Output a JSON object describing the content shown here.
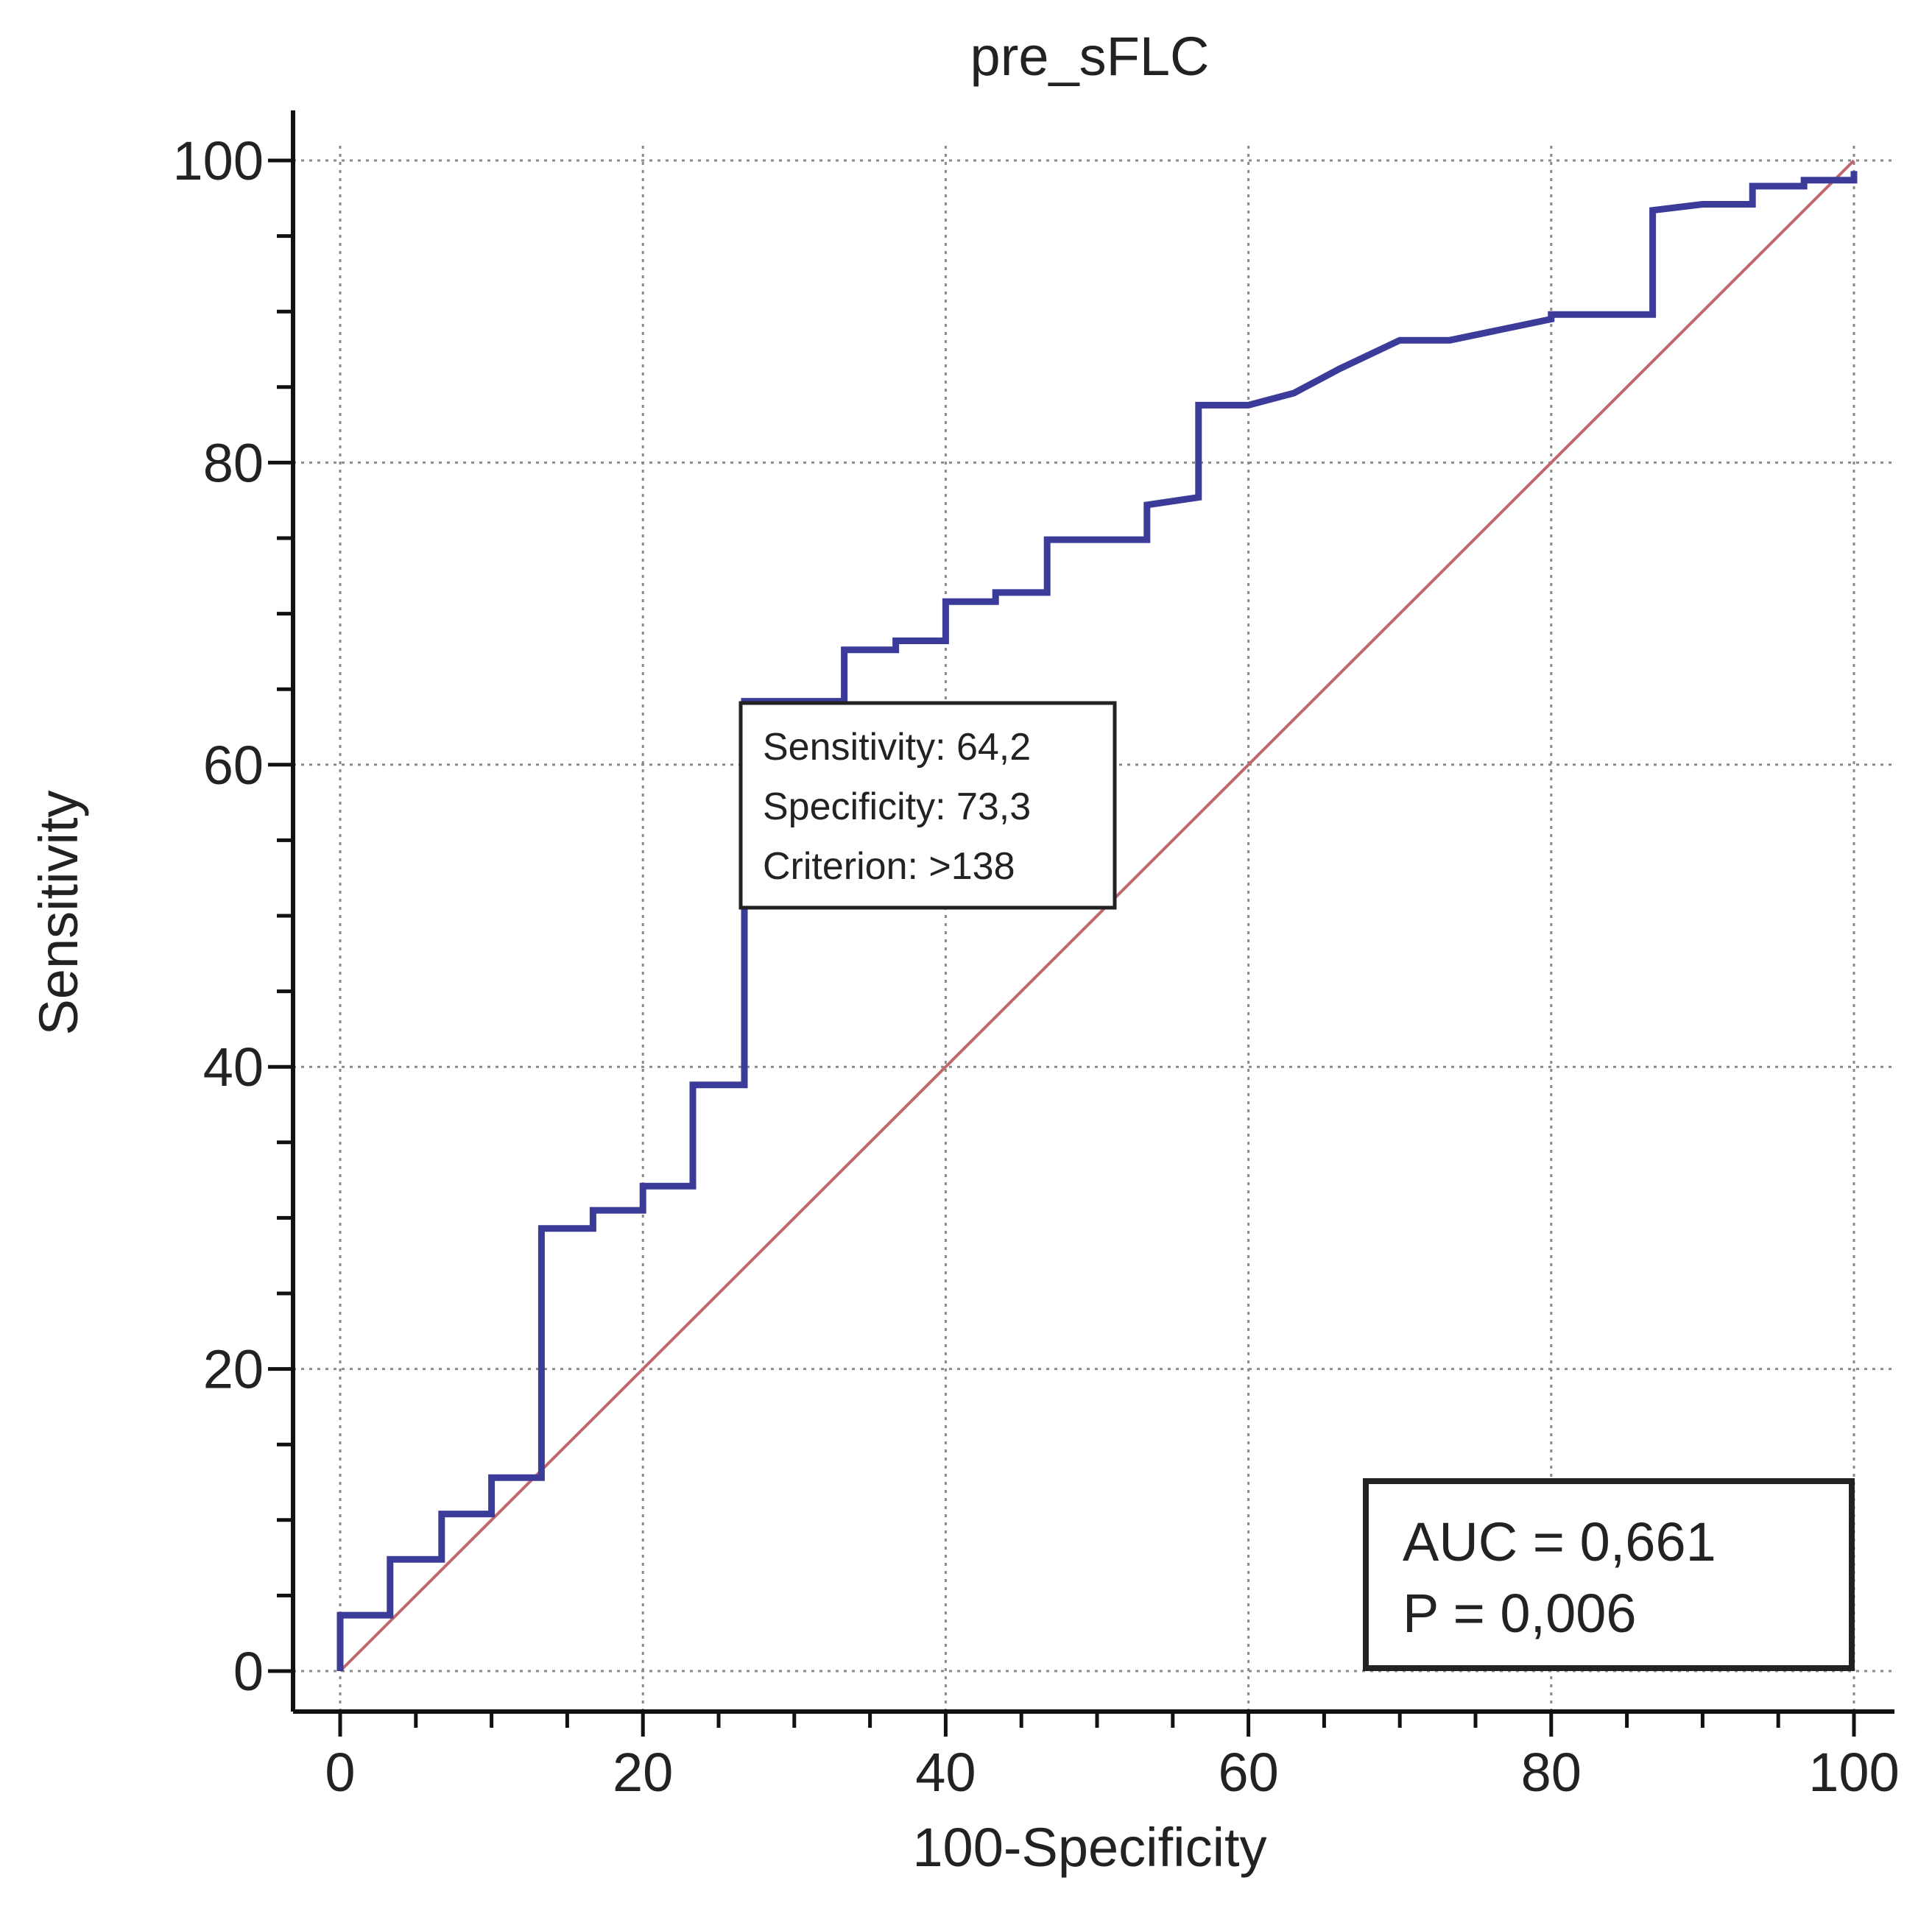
{
  "chart_data": {
    "type": "line",
    "title": "pre_sFLC",
    "xlabel": "100-Specificity",
    "ylabel": "Sensitivity",
    "xlim": [
      0,
      100
    ],
    "ylim": [
      0,
      100
    ],
    "x_ticks": [
      0,
      20,
      40,
      60,
      80,
      100
    ],
    "y_ticks": [
      0,
      20,
      40,
      60,
      80,
      100
    ],
    "x_tick_labels": [
      "0",
      "20",
      "40",
      "60",
      "80",
      "100"
    ],
    "y_tick_labels": [
      "0",
      "20",
      "40",
      "60",
      "80",
      "100"
    ],
    "grid": true,
    "series": [
      {
        "name": "ROC curve",
        "color": "#3b3b9a",
        "points": [
          [
            0,
            0
          ],
          [
            0,
            3.7
          ],
          [
            3.3,
            3.7
          ],
          [
            3.3,
            7.4
          ],
          [
            6.7,
            7.4
          ],
          [
            6.7,
            10.4
          ],
          [
            10,
            10.4
          ],
          [
            10,
            12.8
          ],
          [
            13.3,
            12.8
          ],
          [
            13.3,
            29.3
          ],
          [
            16.7,
            29.3
          ],
          [
            16.7,
            30.5
          ],
          [
            20,
            30.5
          ],
          [
            20,
            32.1
          ],
          [
            23.3,
            32.1
          ],
          [
            23.3,
            38.8
          ],
          [
            26.7,
            38.8
          ],
          [
            26.7,
            64.2
          ],
          [
            33.3,
            64.2
          ],
          [
            33.3,
            67.6
          ],
          [
            36.7,
            67.6
          ],
          [
            36.7,
            68.2
          ],
          [
            40,
            68.2
          ],
          [
            40,
            70.8
          ],
          [
            43.3,
            70.8
          ],
          [
            43.3,
            71.4
          ],
          [
            46.7,
            71.4
          ],
          [
            46.7,
            74.9
          ],
          [
            53.3,
            74.9
          ],
          [
            53.3,
            77.2
          ],
          [
            56.7,
            77.7
          ],
          [
            56.7,
            83.8
          ],
          [
            60,
            83.8
          ],
          [
            63,
            84.6
          ],
          [
            66,
            86.2
          ],
          [
            70,
            88.1
          ],
          [
            73.3,
            88.1
          ],
          [
            80,
            89.5
          ],
          [
            80,
            89.8
          ],
          [
            86.7,
            89.8
          ],
          [
            86.7,
            96.7
          ],
          [
            90,
            97.1
          ],
          [
            93.3,
            97.1
          ],
          [
            93.3,
            98.3
          ],
          [
            96.7,
            98.3
          ],
          [
            96.7,
            98.7
          ],
          [
            100,
            98.7
          ],
          [
            100,
            99.3
          ]
        ]
      },
      {
        "name": "Reference line",
        "color": "#c0686c",
        "points": [
          [
            0,
            0
          ],
          [
            100,
            100
          ]
        ]
      }
    ],
    "annotation": {
      "sensitivity_label": "Sensitivity: 64,2",
      "specificity_label": "Specificity: 73,3",
      "criterion_label": "Criterion: >138",
      "anchor": [
        26.7,
        64.2
      ]
    },
    "stats_box": {
      "auc_label": "AUC = 0,661",
      "p_label": "P = 0,006",
      "placement": "bottom-right"
    }
  }
}
